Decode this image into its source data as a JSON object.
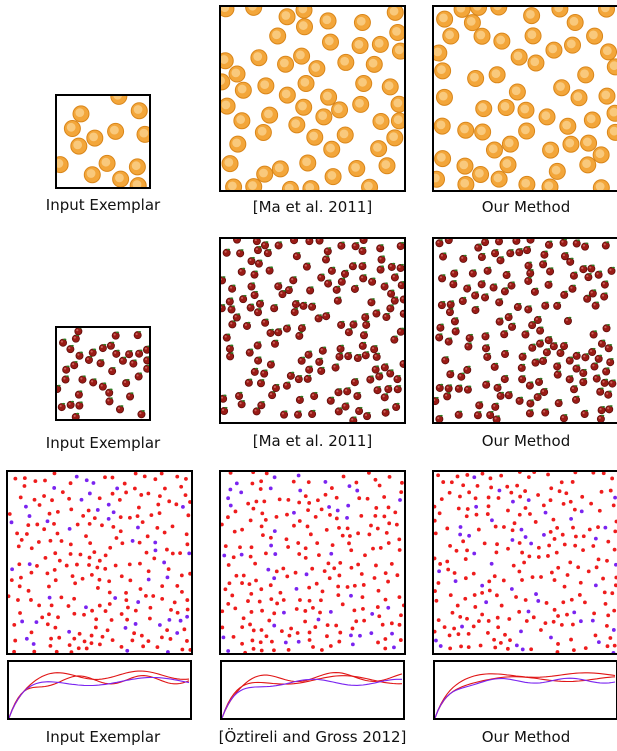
{
  "rows": [
    {
      "kind": "orange",
      "colors": {
        "fill": "#f3a63a",
        "rim": "#d9861a",
        "highlight": "#fde6b3"
      },
      "captions": [
        "Input Exemplar",
        "[Ma et al. 2011]",
        "Our Method"
      ]
    },
    {
      "kind": "cherry",
      "colors": {
        "fill": "#9a1b16",
        "rim": "#5e0d0a",
        "leaf": "#2f7a22",
        "highlight": "#e9918a"
      },
      "captions": [
        "Input Exemplar",
        "[Ma et al. 2011]",
        "Our Method"
      ]
    },
    {
      "kind": "points",
      "colors": {
        "red": "#ee1c1c",
        "purple": "#7a24f0"
      },
      "captions": [
        "Input Exemplar",
        "[Öztireli and Gross 2012]",
        "Our Method"
      ]
    }
  ],
  "curve_colors": [
    "#e01515",
    "#e01515",
    "#7a24f0"
  ]
}
